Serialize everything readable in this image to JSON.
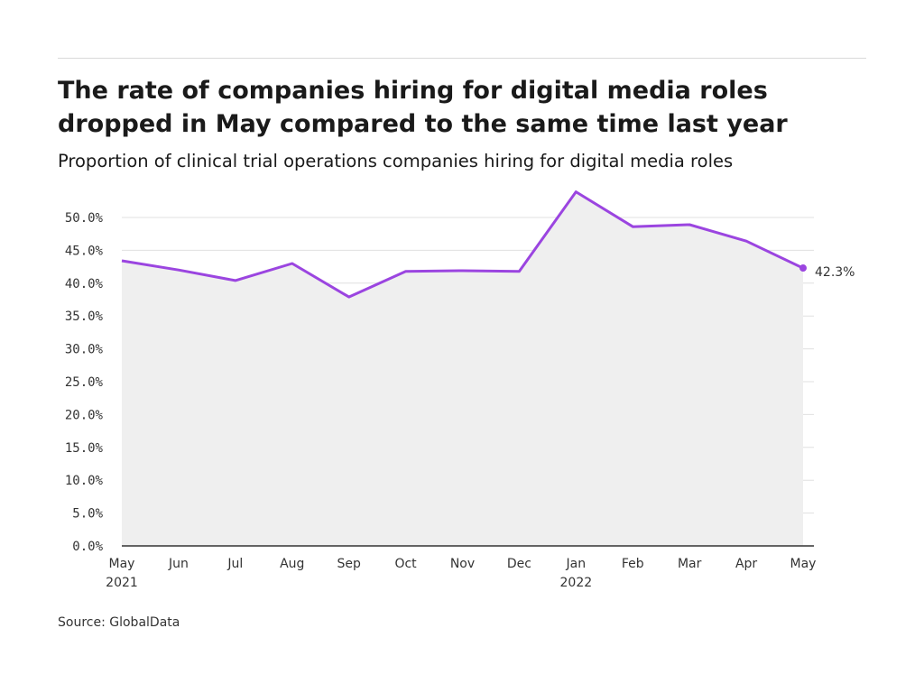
{
  "title": "The rate of companies hiring for digital media roles dropped in May compared to the same time last year",
  "subtitle": "Proportion of clinical trial operations companies hiring for digital media roles",
  "source": "Source: GlobalData",
  "colors": {
    "line": "#9b45e0",
    "area": "#efefef",
    "grid": "#e0e0e0",
    "axis": "#333333"
  },
  "chart_data": {
    "type": "area",
    "categories": [
      "May",
      "Jun",
      "Jul",
      "Aug",
      "Sep",
      "Oct",
      "Nov",
      "Dec",
      "Jan",
      "Feb",
      "Mar",
      "Apr",
      "May"
    ],
    "category_years": [
      "2021",
      "",
      "",
      "",
      "",
      "",
      "",
      "",
      "2022",
      "",
      "",
      "",
      ""
    ],
    "series": [
      {
        "values": [
          43.4,
          42.0,
          40.4,
          43.0,
          37.9,
          41.8,
          41.9,
          41.8,
          53.9,
          48.6,
          48.9,
          46.4,
          42.3
        ]
      }
    ],
    "y_ticks": [
      "0.0%",
      "5.0%",
      "10.0%",
      "15.0%",
      "20.0%",
      "25.0%",
      "30.0%",
      "35.0%",
      "40.0%",
      "45.0%",
      "50.0%"
    ],
    "ylim": [
      0,
      50
    ],
    "end_label": "42.3%",
    "grid": true,
    "xlabel": "",
    "ylabel": ""
  }
}
